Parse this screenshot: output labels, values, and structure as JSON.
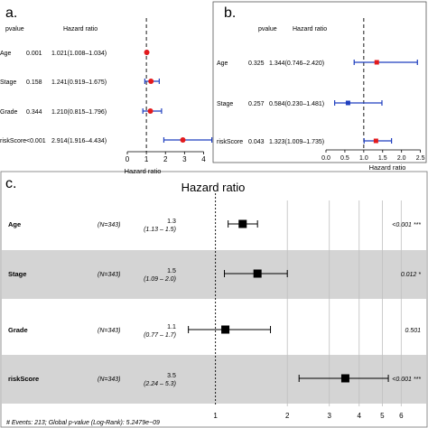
{
  "panel_letters": {
    "a": "a.",
    "b": "b.",
    "c": "c."
  },
  "chart_data": [
    {
      "type": "forest",
      "panel": "a",
      "col_header_p": "pvalue",
      "col_header_hr": "Hazard ratio",
      "xlabel": "Hazard ratio",
      "xlim": [
        0,
        4.5
      ],
      "xticks": [
        0,
        1,
        2,
        3,
        4
      ],
      "reference": 1,
      "rows": [
        {
          "name": "Age",
          "pvalue": "0.001",
          "hr_text": "1.021(1.008–1.034)",
          "hr": 1.021,
          "lo": 1.008,
          "hi": 1.034,
          "color": "#e31a1c"
        },
        {
          "name": "Stage",
          "pvalue": "0.158",
          "hr_text": "1.241(0.919–1.675)",
          "hr": 1.241,
          "lo": 0.919,
          "hi": 1.675,
          "color": "#e31a1c"
        },
        {
          "name": "Grade",
          "pvalue": "0.344",
          "hr_text": "1.210(0.815–1.796)",
          "hr": 1.21,
          "lo": 0.815,
          "hi": 1.796,
          "color": "#e31a1c"
        },
        {
          "name": "riskScore",
          "pvalue": "<0.001",
          "hr_text": "2.914(1.916–4.434)",
          "hr": 2.914,
          "lo": 1.916,
          "hi": 4.434,
          "color": "#e31a1c"
        }
      ]
    },
    {
      "type": "forest",
      "panel": "b",
      "col_header_p": "pvalue",
      "col_header_hr": "Hazard ratio",
      "xlabel": "Hazard ratio",
      "xlim": [
        0,
        2.7
      ],
      "xticks": [
        0.0,
        0.5,
        1.0,
        1.5,
        2.0,
        2.5
      ],
      "xtick_labels": [
        "0.0",
        "0.5",
        "1.0",
        "1.5",
        "2.0",
        "2.5"
      ],
      "reference": 1,
      "rows": [
        {
          "name": "Age",
          "pvalue": "0.325",
          "hr_text": "1.344(0.746–2.420)",
          "hr": 1.344,
          "lo": 0.746,
          "hi": 2.42,
          "color": "#e31a1c"
        },
        {
          "name": "Stage",
          "pvalue": "0.257",
          "hr_text": "0.584(0.230–1.481)",
          "hr": 0.584,
          "lo": 0.23,
          "hi": 1.481,
          "color": "#1f3fbf"
        },
        {
          "name": "riskScore",
          "pvalue": "0.043",
          "hr_text": "1.323(1.009–1.735)",
          "hr": 1.323,
          "lo": 1.009,
          "hi": 1.735,
          "color": "#e31a1c"
        }
      ]
    },
    {
      "type": "forest",
      "panel": "c",
      "title": "Hazard ratio",
      "scale": "log",
      "xlim": [
        0.6,
        7
      ],
      "xticks": [
        1,
        2,
        3,
        4,
        5,
        6
      ],
      "reference": 1,
      "rows": [
        {
          "name": "Age",
          "n": "(N=343)",
          "hr_label": "1.3",
          "ci_label": "(1.13 – 1.5)",
          "hr": 1.3,
          "lo": 1.13,
          "hi": 1.5,
          "p_label": "<0.001 ***",
          "shaded": false
        },
        {
          "name": "Stage",
          "n": "(N=343)",
          "hr_label": "1.5",
          "ci_label": "(1.09 – 2.0)",
          "hr": 1.5,
          "lo": 1.09,
          "hi": 2.0,
          "p_label": "0.012 *",
          "shaded": true
        },
        {
          "name": "Grade",
          "n": "(N=343)",
          "hr_label": "1.1",
          "ci_label": "(0.77 – 1.7)",
          "hr": 1.1,
          "lo": 0.77,
          "hi": 1.7,
          "p_label": "0.501",
          "shaded": false
        },
        {
          "name": "riskScore",
          "n": "(N=343)",
          "hr_label": "3.5",
          "ci_label": "(2.24 – 5.3)",
          "hr": 3.5,
          "lo": 2.24,
          "hi": 5.3,
          "p_label": "<0.001 ***",
          "shaded": true
        }
      ],
      "footnote": "# Events: 213; Global p-value (Log-Rank): 5.2479e−09"
    }
  ]
}
